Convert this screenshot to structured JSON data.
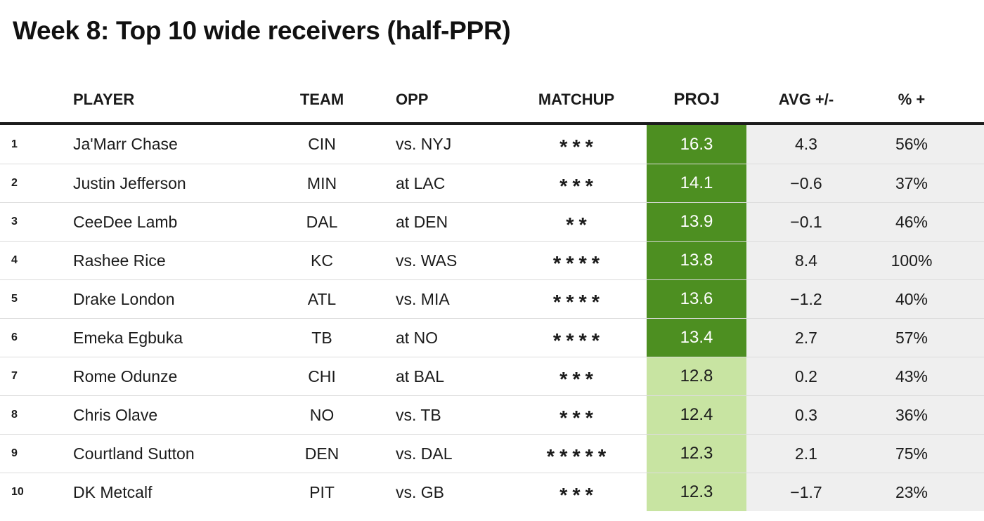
{
  "chart_data": {
    "type": "table",
    "title": "Week 8: Top 10 wide receivers (half-PPR)",
    "columns": [
      "PLAYER",
      "TEAM",
      "OPP",
      "MATCHUP",
      "PROJ",
      "AVG +/-",
      "% +"
    ],
    "headers": {
      "rank": "",
      "player": "PLAYER",
      "team": "TEAM",
      "opp": "OPP",
      "matchup": "MATCHUP",
      "proj": "PROJ",
      "avg": "AVG +/-",
      "pct": "% +"
    },
    "legend": {
      "matchup_scale": "stars 1-5",
      "proj_shading": "dark green = higher projection, light green = lower projection"
    },
    "rows": [
      {
        "rank": "1",
        "player": "Ja'Marr Chase",
        "team": "CIN",
        "opp": "vs. NYJ",
        "stars": 3,
        "proj": "16.3",
        "avg": "4.3",
        "pct": "56%",
        "shade": "dark"
      },
      {
        "rank": "2",
        "player": "Justin Jefferson",
        "team": "MIN",
        "opp": "at LAC",
        "stars": 3,
        "proj": "14.1",
        "avg": "−0.6",
        "pct": "37%",
        "shade": "dark"
      },
      {
        "rank": "3",
        "player": "CeeDee Lamb",
        "team": "DAL",
        "opp": "at DEN",
        "stars": 2,
        "proj": "13.9",
        "avg": "−0.1",
        "pct": "46%",
        "shade": "dark"
      },
      {
        "rank": "4",
        "player": "Rashee Rice",
        "team": "KC",
        "opp": "vs. WAS",
        "stars": 4,
        "proj": "13.8",
        "avg": "8.4",
        "pct": "100%",
        "shade": "dark"
      },
      {
        "rank": "5",
        "player": "Drake London",
        "team": "ATL",
        "opp": "vs. MIA",
        "stars": 4,
        "proj": "13.6",
        "avg": "−1.2",
        "pct": "40%",
        "shade": "dark"
      },
      {
        "rank": "6",
        "player": "Emeka Egbuka",
        "team": "TB",
        "opp": "at NO",
        "stars": 4,
        "proj": "13.4",
        "avg": "2.7",
        "pct": "57%",
        "shade": "dark"
      },
      {
        "rank": "7",
        "player": "Rome Odunze",
        "team": "CHI",
        "opp": "at BAL",
        "stars": 3,
        "proj": "12.8",
        "avg": "0.2",
        "pct": "43%",
        "shade": "light"
      },
      {
        "rank": "8",
        "player": "Chris Olave",
        "team": "NO",
        "opp": "vs. TB",
        "stars": 3,
        "proj": "12.4",
        "avg": "0.3",
        "pct": "36%",
        "shade": "light"
      },
      {
        "rank": "9",
        "player": "Courtland Sutton",
        "team": "DEN",
        "opp": "vs. DAL",
        "stars": 5,
        "proj": "12.3",
        "avg": "2.1",
        "pct": "75%",
        "shade": "light"
      },
      {
        "rank": "10",
        "player": "DK Metcalf",
        "team": "PIT",
        "opp": "vs. GB",
        "stars": 3,
        "proj": "12.3",
        "avg": "−1.7",
        "pct": "23%",
        "shade": "light"
      }
    ]
  },
  "colors": {
    "proj_high_bg": "#4d8f21",
    "proj_low_bg": "#c8e4a2",
    "stat_col_bg": "#efefef",
    "divider": "#dcdcdc",
    "header_rule": "#1c1c1c",
    "text": "#1b1b1b",
    "proj_high_text": "#ffffff"
  }
}
